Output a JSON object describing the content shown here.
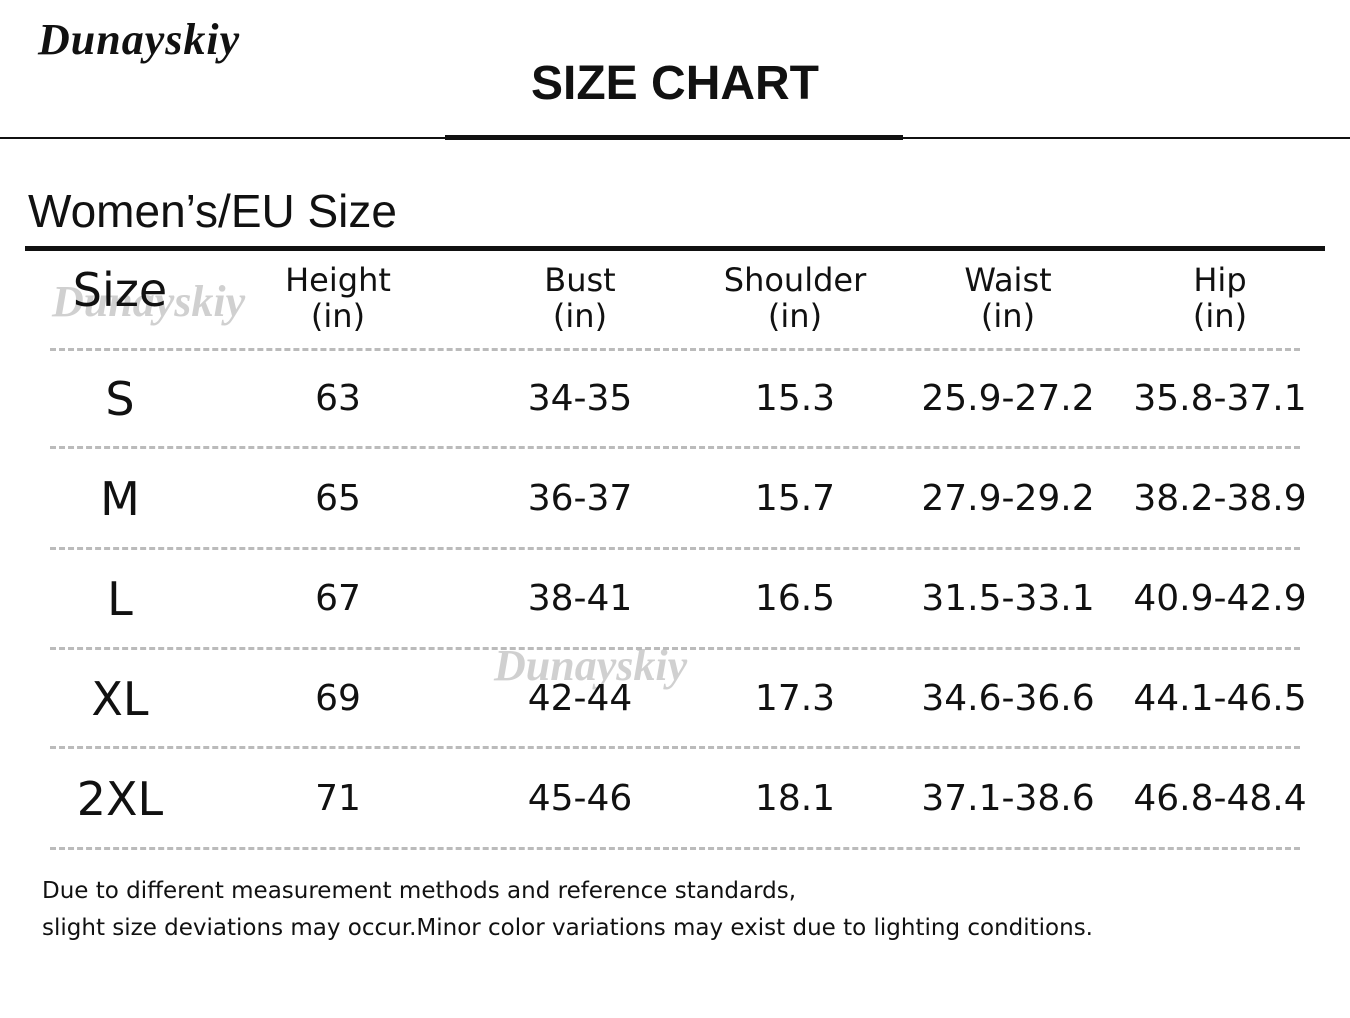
{
  "header": {
    "brand": "Dunayskiy",
    "title": "SIZE CHART"
  },
  "section_title": "Women’s/EU Size",
  "watermarks": [
    "Dunayskiy",
    "Dunayskiy"
  ],
  "table": {
    "columns": [
      {
        "name": "Size"
      },
      {
        "name": "Height",
        "unit": "(in)"
      },
      {
        "name": "Bust",
        "unit": "(in)"
      },
      {
        "name": "Shoulder",
        "unit": "(in)"
      },
      {
        "name": "Waist",
        "unit": "(in)"
      },
      {
        "name": "Hip",
        "unit": "(in)"
      }
    ],
    "rows": [
      [
        "S",
        "63",
        "34-35",
        "15.3",
        "25.9-27.2",
        "35.8-37.1"
      ],
      [
        "M",
        "65",
        "36-37",
        "15.7",
        "27.9-29.2",
        "38.2-38.9"
      ],
      [
        "L",
        "67",
        "38-41",
        "16.5",
        "31.5-33.1",
        "40.9-42.9"
      ],
      [
        "XL",
        "69",
        "42-44",
        "17.3",
        "34.6-36.6",
        "44.1-46.5"
      ],
      [
        "2XL",
        "71",
        "45-46",
        "18.1",
        "37.1-38.6",
        "46.8-48.4"
      ]
    ]
  },
  "notes": [
    "Due to different measurement methods and reference standards,",
    "slight size deviations may occur.Minor color variations may exist due to lighting conditions."
  ]
}
